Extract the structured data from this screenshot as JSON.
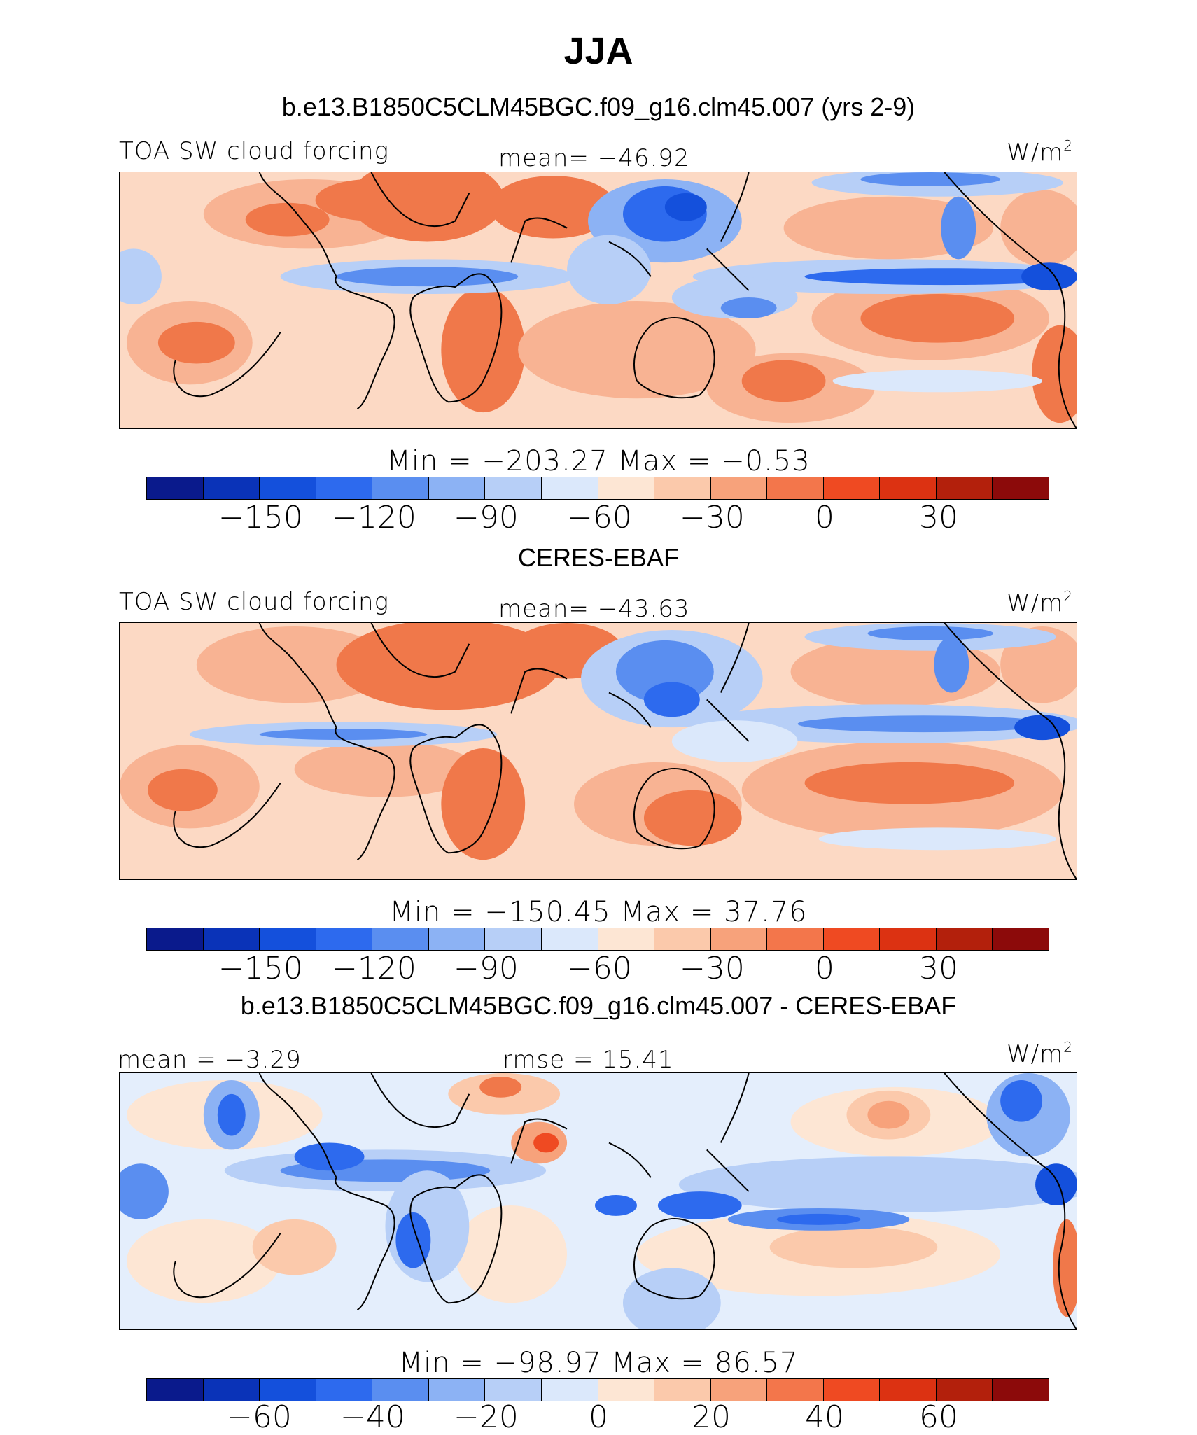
{
  "header": {
    "title": "JJA",
    "case_subtitle": "b.e13.B1850C5CLM45BGC.f09_g16.clm45.007 (yrs 2-9)",
    "obs_subtitle": "CERES-EBAF",
    "diff_subtitle": "b.e13.B1850C5CLM45BGC.f09_g16.clm45.007 - CERES-EBAF"
  },
  "panels": [
    {
      "variable": "TOA SW cloud forcing",
      "mean": "mean= −46.92",
      "units": "W/m",
      "units_exp": "2",
      "minmax": "Min  =  −203.27  Max  =    −0.53"
    },
    {
      "variable": "TOA SW cloud forcing",
      "mean": "mean= −43.63",
      "units": "W/m",
      "units_exp": "2",
      "minmax": "Min  =  −150.45  Max  =    37.76"
    },
    {
      "mean": "mean =   −3.29",
      "rmse": "rmse =   15.41",
      "units": "W/m",
      "units_exp": "2",
      "minmax": "Min  =  −98.97  Max  =    86.57"
    }
  ],
  "colorbar_ticks_abs": [
    "−150",
    "−120",
    "−90",
    "−60",
    "−30",
    "0",
    "30"
  ],
  "colorbar_ticks_diff": [
    "−60",
    "−40",
    "−20",
    "0",
    "20",
    "40",
    "60"
  ],
  "colorbar_colors": [
    "#0a1a8c",
    "#0a33b8",
    "#1450dc",
    "#2d6aee",
    "#5a8ef0",
    "#8cb2f4",
    "#b7cff7",
    "#dbe8fb",
    "#fde6d4",
    "#fbc9ab",
    "#f7a27b",
    "#f3764b",
    "#ef4a22",
    "#dc3212",
    "#b3200c",
    "#8c0a0a"
  ]
}
